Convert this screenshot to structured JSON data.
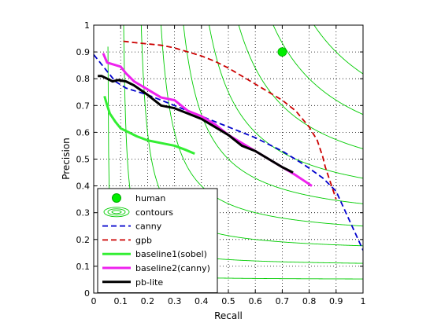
{
  "chart_data": {
    "type": "line",
    "title": "",
    "xlabel": "Recall",
    "ylabel": "Precision",
    "xlim": [
      0,
      1
    ],
    "ylim": [
      0,
      1
    ],
    "xticks": [
      "0",
      "0.1",
      "0.2",
      "0.3",
      "0.4",
      "0.5",
      "0.6",
      "0.7",
      "0.8",
      "0.9",
      "1"
    ],
    "yticks": [
      "0",
      "0.1",
      "0.2",
      "0.3",
      "0.4",
      "0.5",
      "0.6",
      "0.7",
      "0.8",
      "0.9",
      "1"
    ],
    "grid": true,
    "grid_style": "dotted",
    "legend_placement": "lower-left",
    "contours": {
      "label": "contours",
      "color": "#00cc00",
      "f_levels": [
        0.1,
        0.2,
        0.3,
        0.4,
        0.5,
        0.6,
        0.7,
        0.8,
        0.9
      ]
    },
    "human": {
      "label": "human",
      "x": 0.7,
      "y": 0.9,
      "color": "#00ee00"
    },
    "series": [
      {
        "name": "canny",
        "color": "#0000cc",
        "style": "dashed",
        "x": [
          0.0,
          0.04,
          0.08,
          0.12,
          0.2,
          0.3,
          0.4,
          0.5,
          0.6,
          0.7,
          0.78,
          0.85,
          0.9,
          0.95,
          1.0
        ],
        "y": [
          0.89,
          0.84,
          0.79,
          0.765,
          0.74,
          0.7,
          0.66,
          0.62,
          0.58,
          0.53,
          0.48,
          0.43,
          0.38,
          0.27,
          0.16
        ]
      },
      {
        "name": "gpb",
        "color": "#cc0000",
        "style": "dashed",
        "x": [
          0.11,
          0.15,
          0.2,
          0.25,
          0.3,
          0.35,
          0.4,
          0.45,
          0.5,
          0.55,
          0.6,
          0.65,
          0.7,
          0.75,
          0.8,
          0.83,
          0.85,
          0.86,
          0.87,
          0.88,
          0.9
        ],
        "y": [
          0.94,
          0.935,
          0.93,
          0.925,
          0.915,
          0.9,
          0.885,
          0.865,
          0.84,
          0.81,
          0.78,
          0.75,
          0.72,
          0.68,
          0.62,
          0.57,
          0.51,
          0.47,
          0.44,
          0.41,
          0.35
        ]
      },
      {
        "name": "baseline1(sobel)",
        "color": "#33ee33",
        "style": "solid",
        "x": [
          0.04,
          0.05,
          0.06,
          0.08,
          0.1,
          0.13,
          0.16,
          0.2,
          0.25,
          0.3,
          0.34,
          0.375
        ],
        "y": [
          0.735,
          0.7,
          0.67,
          0.64,
          0.615,
          0.6,
          0.585,
          0.57,
          0.56,
          0.55,
          0.535,
          0.52
        ]
      },
      {
        "name": "baseline2(canny)",
        "color": "#ee22ee",
        "style": "solid",
        "x": [
          0.035,
          0.05,
          0.1,
          0.12,
          0.15,
          0.2,
          0.25,
          0.3,
          0.35,
          0.4,
          0.45,
          0.5,
          0.55,
          0.6,
          0.65,
          0.7,
          0.75,
          0.81
        ],
        "y": [
          0.895,
          0.86,
          0.845,
          0.82,
          0.79,
          0.76,
          0.73,
          0.72,
          0.68,
          0.66,
          0.63,
          0.59,
          0.56,
          0.53,
          0.5,
          0.47,
          0.44,
          0.4
        ]
      },
      {
        "name": "pb-lite",
        "color": "#000000",
        "style": "solid",
        "x": [
          0.015,
          0.03,
          0.05,
          0.07,
          0.09,
          0.12,
          0.15,
          0.2,
          0.25,
          0.3,
          0.35,
          0.4,
          0.45,
          0.5,
          0.55,
          0.6,
          0.65,
          0.7,
          0.74
        ],
        "y": [
          0.81,
          0.81,
          0.8,
          0.79,
          0.795,
          0.79,
          0.775,
          0.74,
          0.7,
          0.69,
          0.67,
          0.65,
          0.62,
          0.59,
          0.55,
          0.53,
          0.5,
          0.47,
          0.45
        ]
      }
    ]
  }
}
